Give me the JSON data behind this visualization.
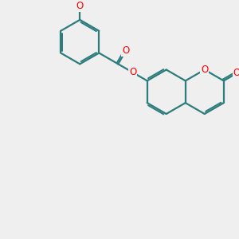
{
  "bg_color": "#efefef",
  "bond_color": "#2e7d7d",
  "heteroatom_color": "#ff0000",
  "bond_width": 1.6,
  "font_size_atom": 8.5,
  "figsize": [
    3.0,
    3.0
  ],
  "dpi": 100,
  "xlim": [
    0,
    10
  ],
  "ylim": [
    0,
    10
  ],
  "bl": 0.95
}
